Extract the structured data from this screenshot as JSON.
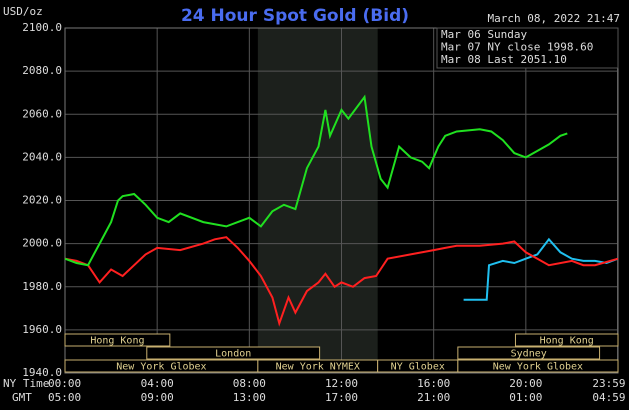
{
  "chart_data": {
    "type": "line",
    "title": "24 Hour Spot Gold (Bid)",
    "unit_label": "USD/oz",
    "timestamp": "March 08, 2022 21:47",
    "x_row_labels": [
      "NY Time",
      "GMT"
    ],
    "xlim": [
      0,
      24
    ],
    "xticks": [
      {
        "value": 0,
        "label": "00:00"
      },
      {
        "value": 4,
        "label": "04:00"
      },
      {
        "value": 8,
        "label": "08:00"
      },
      {
        "value": 12,
        "label": "12:00"
      },
      {
        "value": 16,
        "label": "16:00"
      },
      {
        "value": 20,
        "label": "20:00"
      },
      {
        "value": 23.98,
        "label": "23:59"
      }
    ],
    "gmt_labels": [
      "05:00",
      "09:00",
      "13:00",
      "17:00",
      "21:00",
      "01:00",
      "04:59"
    ],
    "ylim": [
      1940,
      2100
    ],
    "yticks": [
      {
        "value": 1940,
        "label": "1940.0"
      },
      {
        "value": 1960,
        "label": "1960.0"
      },
      {
        "value": 1980,
        "label": "1980.0"
      },
      {
        "value": 2000,
        "label": "2000.0"
      },
      {
        "value": 2020,
        "label": "2020.0"
      },
      {
        "value": 2040,
        "label": "2040.0"
      },
      {
        "value": 2060,
        "label": "2060.0"
      },
      {
        "value": 2080,
        "label": "2080.0"
      },
      {
        "value": 2100,
        "label": "2100.0"
      }
    ],
    "grid": true,
    "highlight": [
      8.37,
      13.57
    ],
    "sessions": [
      {
        "label": "Hong Kong",
        "row": 0,
        "start": 0,
        "end": 4.55
      },
      {
        "label": "Hong Kong",
        "row": 0,
        "start": 19.55,
        "end": 24
      },
      {
        "label": "London",
        "row": 1,
        "start": 3.55,
        "end": 11.05
      },
      {
        "label": "Sydney",
        "row": 1,
        "start": 17.05,
        "end": 23.2
      },
      {
        "label": "New York Globex",
        "row": 2,
        "start": 0,
        "end": 8.37
      },
      {
        "label": "New York NYMEX",
        "row": 2,
        "start": 8.37,
        "end": 13.57
      },
      {
        "label": "NY Globex",
        "row": 2,
        "start": 13.57,
        "end": 17.05
      },
      {
        "label": "New York Globex",
        "row": 2,
        "start": 17.05,
        "end": 24
      }
    ],
    "series": [
      {
        "name": "Mar 06 Sunday",
        "color": "#20c0f0",
        "x": [
          17.3,
          18.3,
          18.4,
          19,
          19.5,
          20,
          20.5,
          21,
          21.5,
          22,
          22.5,
          23,
          23.5,
          24
        ],
        "values": [
          1974,
          1974,
          1990,
          1992,
          1991,
          1993,
          1995,
          2002,
          1996,
          1993,
          1992,
          1992,
          1991,
          1993
        ]
      },
      {
        "name": "Mar 07 NY close 1998.60",
        "color": "#ff2020",
        "x": [
          0,
          0.5,
          1,
          1.5,
          2,
          2.5,
          3,
          3.5,
          4,
          5,
          6,
          6.5,
          7,
          7.5,
          8,
          8.5,
          9,
          9.3,
          9.7,
          10,
          10.5,
          11,
          11.3,
          11.7,
          12,
          12.5,
          13,
          13.5,
          14,
          15,
          16,
          16.5,
          17,
          18,
          19,
          19.5,
          20,
          20.5,
          21,
          22,
          22.5,
          23,
          24
        ],
        "values": [
          1993,
          1992,
          1990,
          1982,
          1988,
          1985,
          1990,
          1995,
          1998,
          1997,
          2000,
          2002,
          2003,
          1998,
          1992,
          1985,
          1975,
          1963,
          1975,
          1968,
          1978,
          1982,
          1986,
          1980,
          1982,
          1980,
          1984,
          1985,
          1993,
          1995,
          1997,
          1998,
          1999,
          1999,
          2000,
          2001,
          1996,
          1993,
          1990,
          1992,
          1990,
          1990,
          1993
        ]
      },
      {
        "name": "Mar 08 Last 2051.10",
        "color": "#20e020",
        "x": [
          0,
          0.5,
          1,
          1.5,
          2,
          2.3,
          2.5,
          3,
          3.5,
          4,
          4.5,
          5,
          6,
          7,
          7.5,
          8,
          8.5,
          9,
          9.5,
          10,
          10.5,
          11,
          11.3,
          11.5,
          12,
          12.3,
          13,
          13.3,
          13.7,
          14,
          14.5,
          15,
          15.5,
          15.8,
          16.2,
          16.5,
          17,
          18,
          18.5,
          19,
          19.5,
          20,
          20.5,
          21,
          21.5,
          21.8
        ],
        "values": [
          1993,
          1991,
          1990,
          2000,
          2010,
          2020,
          2022,
          2023,
          2018,
          2012,
          2010,
          2014,
          2010,
          2008,
          2010,
          2012,
          2008,
          2015,
          2018,
          2016,
          2035,
          2045,
          2062,
          2050,
          2062,
          2058,
          2068,
          2045,
          2030,
          2026,
          2045,
          2040,
          2038,
          2035,
          2045,
          2050,
          2052,
          2053,
          2052,
          2048,
          2042,
          2040,
          2043,
          2046,
          2050,
          2051.1
        ]
      }
    ]
  }
}
